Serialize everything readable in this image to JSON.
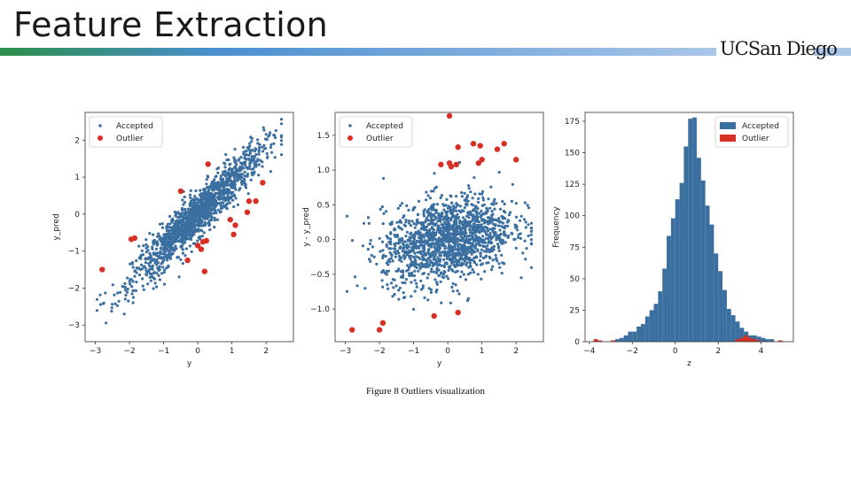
{
  "slide": {
    "title": "Feature Extraction",
    "logo": "UCSan Diego",
    "caption": "Figure 8 Outliers visualization"
  },
  "colors": {
    "accepted": "#3b6fa0",
    "outlier": "#d62f24",
    "bar_start": "#2c8f4a",
    "bar_end": "#a9c6e8"
  },
  "chart_data": [
    {
      "type": "scatter",
      "xlabel": "y",
      "ylabel": "y_pred",
      "xlim": [
        -3.3,
        2.8
      ],
      "ylim": [
        -3.45,
        2.75
      ],
      "xticks": [
        -3,
        -2,
        -1,
        0,
        1,
        2
      ],
      "yticks": [
        -3,
        -2,
        -1,
        0,
        1,
        2
      ],
      "legend": [
        {
          "label": "Accepted",
          "kind": "dot"
        },
        {
          "label": "Outlier",
          "kind": "dot"
        }
      ],
      "legend_position": "top-left",
      "accepted_model": "y_pred ≈ 0.9·y with noise (sd 0.3), ~1500 points",
      "outliers": [
        [
          -2.8,
          -1.5
        ],
        [
          -1.95,
          -0.68
        ],
        [
          -1.85,
          -0.65
        ],
        [
          -0.5,
          0.62
        ],
        [
          0.3,
          1.35
        ],
        [
          -0.3,
          -1.25
        ],
        [
          0.0,
          -0.85
        ],
        [
          0.1,
          -0.95
        ],
        [
          0.15,
          -0.75
        ],
        [
          0.25,
          -0.72
        ],
        [
          0.2,
          -1.55
        ],
        [
          0.95,
          -0.15
        ],
        [
          1.1,
          -0.3
        ],
        [
          1.05,
          -0.55
        ],
        [
          1.5,
          0.35
        ],
        [
          1.7,
          0.35
        ],
        [
          1.9,
          0.85
        ],
        [
          1.45,
          0.05
        ]
      ]
    },
    {
      "type": "scatter",
      "xlabel": "y",
      "ylabel": "y - y_pred",
      "xlim": [
        -3.3,
        2.8
      ],
      "ylim": [
        -1.47,
        1.83
      ],
      "xticks": [
        -3,
        -2,
        -1,
        0,
        1,
        2
      ],
      "yticks": [
        -1.0,
        -0.5,
        0.0,
        0.5,
        1.0,
        1.5
      ],
      "legend": [
        {
          "label": "Accepted",
          "kind": "dot"
        },
        {
          "label": "Outlier",
          "kind": "dot"
        }
      ],
      "legend_position": "top-left",
      "accepted_model": "residual ≈ 0.1·y with noise (sd 0.3), ~1500 points",
      "outliers": [
        [
          0.05,
          1.78
        ],
        [
          -0.2,
          1.08
        ],
        [
          0.05,
          1.1
        ],
        [
          0.1,
          1.05
        ],
        [
          0.25,
          1.08
        ],
        [
          0.3,
          1.33
        ],
        [
          0.75,
          1.38
        ],
        [
          0.95,
          1.35
        ],
        [
          1.0,
          1.15
        ],
        [
          0.9,
          1.1
        ],
        [
          1.45,
          1.3
        ],
        [
          1.65,
          1.38
        ],
        [
          2.0,
          1.15
        ],
        [
          -2.8,
          -1.3
        ],
        [
          -2.0,
          -1.3
        ],
        [
          -1.9,
          -1.2
        ],
        [
          -0.4,
          -1.1
        ],
        [
          0.3,
          -1.05
        ]
      ]
    },
    {
      "type": "bar",
      "subtype": "histogram",
      "xlabel": "z",
      "ylabel": "Frequency",
      "xlim": [
        -4.2,
        5.5
      ],
      "ylim": [
        0,
        182
      ],
      "xticks": [
        -4,
        -2,
        0,
        2,
        4
      ],
      "yticks": [
        0,
        25,
        50,
        75,
        100,
        125,
        150,
        175
      ],
      "legend": [
        {
          "label": "Accepted",
          "kind": "patch"
        },
        {
          "label": "Outlier",
          "kind": "patch"
        }
      ],
      "legend_position": "top-right",
      "bin_width": 0.2,
      "accepted": {
        "bin_start": -3.0,
        "values": [
          1,
          2,
          3,
          5,
          8,
          8,
          12,
          14,
          20,
          25,
          30,
          40,
          58,
          84,
          98,
          113,
          126,
          155,
          177,
          178,
          146,
          128,
          108,
          93,
          70,
          56,
          41,
          26,
          21,
          16,
          11,
          8,
          5,
          5,
          4,
          3,
          2,
          2
        ]
      },
      "outlier": {
        "bins": [
          [
            -3.8,
            2
          ],
          [
            -3.6,
            1
          ],
          [
            -3.0,
            1
          ],
          [
            2.8,
            2
          ],
          [
            3.0,
            3
          ],
          [
            3.2,
            5
          ],
          [
            3.4,
            3
          ],
          [
            3.6,
            2
          ],
          [
            3.8,
            1
          ],
          [
            4.8,
            1
          ]
        ]
      }
    }
  ]
}
